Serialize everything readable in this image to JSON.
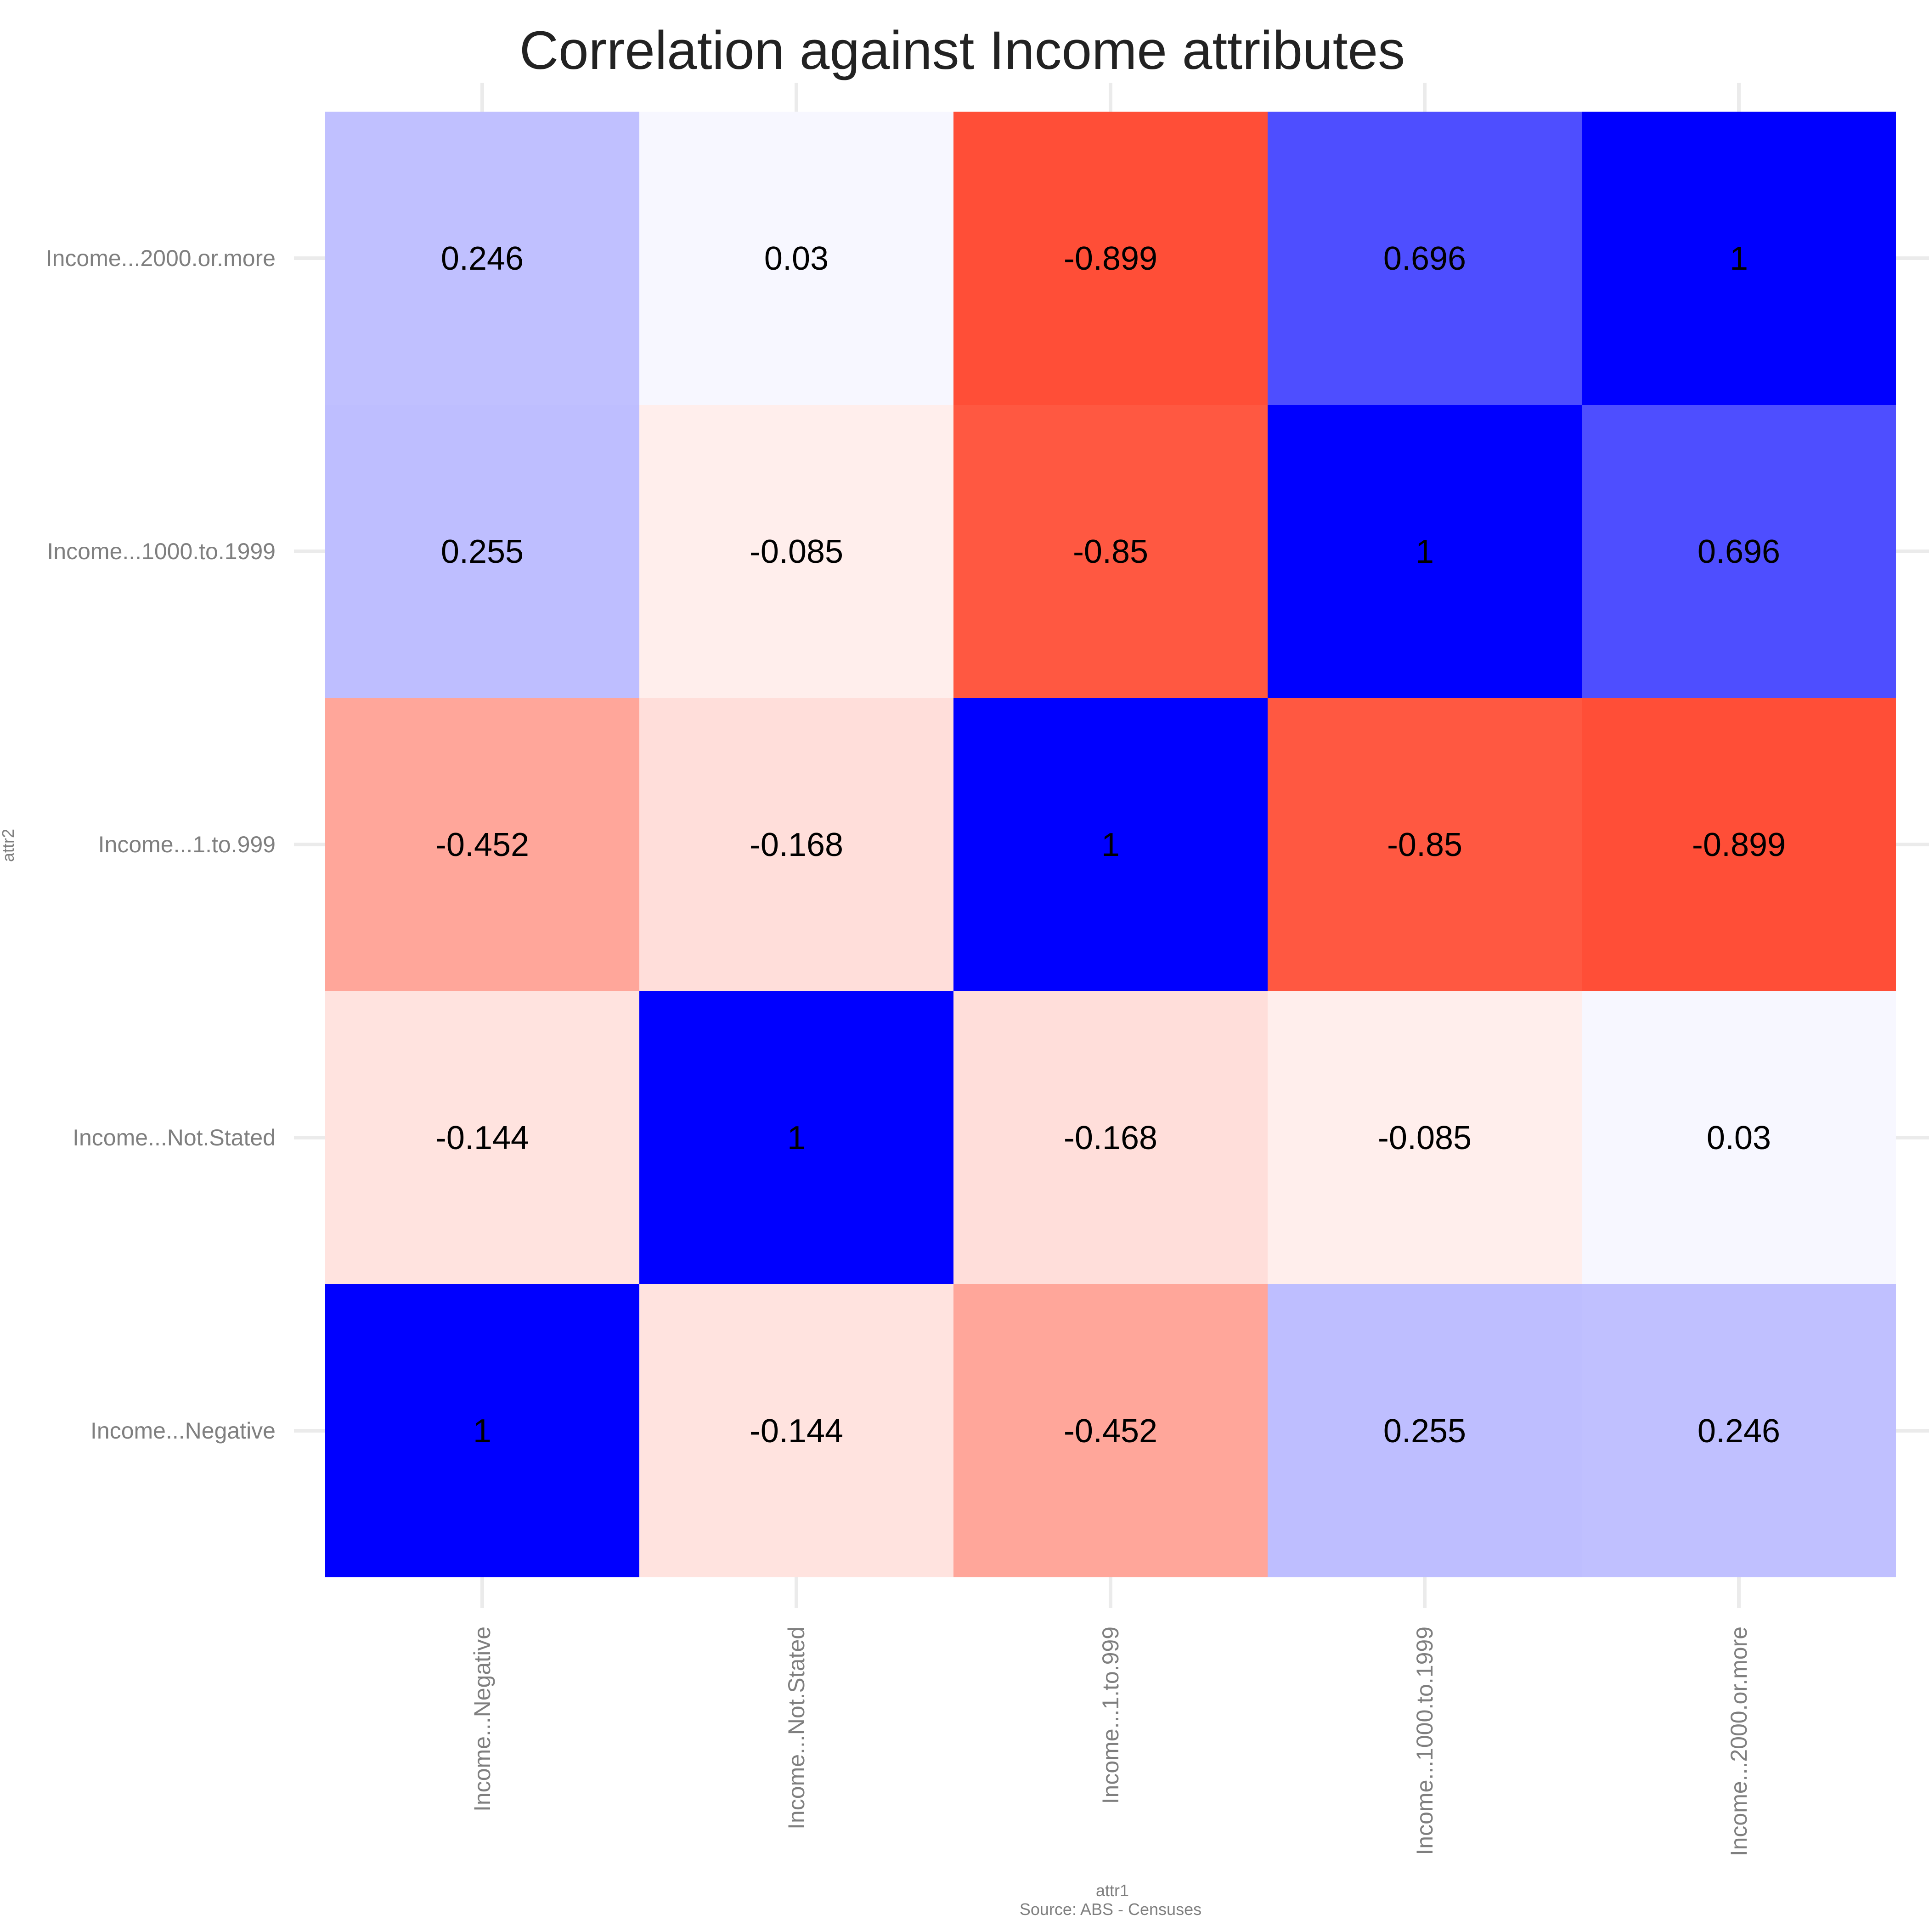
{
  "chart_data": {
    "type": "heatmap",
    "title": "Correlation against Income attributes",
    "xlabel": "attr1",
    "ylabel": "attr2",
    "caption": "Source: ABS - Censuses",
    "x_categories": [
      "Income...Negative",
      "Income...Not.Stated",
      "Income...1.to.999",
      "Income...1000.to.1999",
      "Income...2000.or.more"
    ],
    "y_categories": [
      "Income...Negative",
      "Income...Not.Stated",
      "Income...1.to.999",
      "Income...1000.to.1999",
      "Income...2000.or.more"
    ],
    "values": [
      [
        1,
        -0.144,
        -0.452,
        0.255,
        0.246
      ],
      [
        -0.144,
        1,
        -0.168,
        -0.085,
        0.03
      ],
      [
        -0.452,
        -0.168,
        1,
        -0.85,
        -0.899
      ],
      [
        0.255,
        -0.085,
        -0.85,
        1,
        0.696
      ],
      [
        0.246,
        0.03,
        -0.899,
        0.696,
        1
      ]
    ],
    "value_labels": [
      [
        "1",
        "-0.144",
        "-0.452",
        "0.255",
        "0.246"
      ],
      [
        "-0.144",
        "1",
        "-0.168",
        "-0.085",
        "0.03"
      ],
      [
        "-0.452",
        "-0.168",
        "1",
        "-0.85",
        "-0.899"
      ],
      [
        "0.255",
        "-0.085",
        "-0.85",
        "1",
        "0.696"
      ],
      [
        "0.246",
        "0.03",
        "-0.899",
        "0.696",
        "1"
      ]
    ],
    "color_scale": {
      "low": "#FF3A20",
      "mid": "#FFFFFF",
      "high": "#0000FF",
      "domain": [
        -1,
        0,
        1
      ]
    },
    "grid": true,
    "legend": "none"
  }
}
